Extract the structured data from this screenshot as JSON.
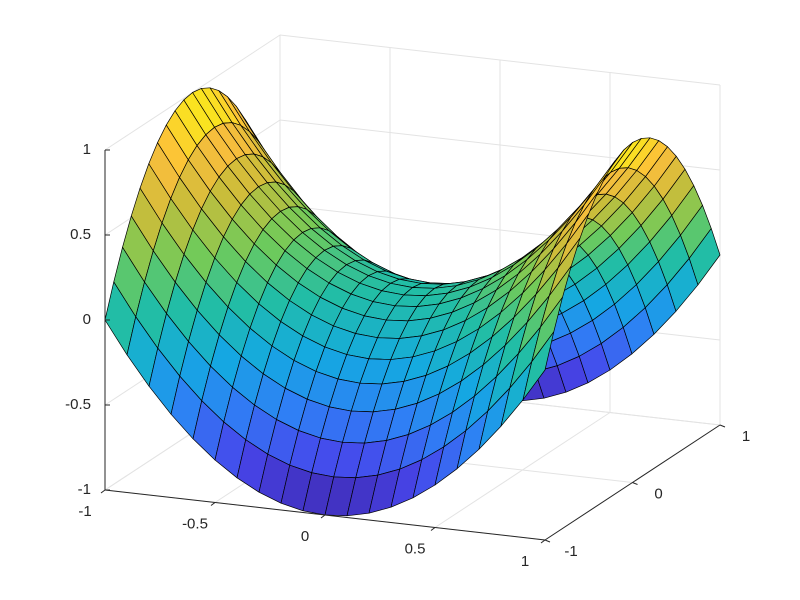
{
  "chart_data": {
    "type": "surface",
    "x": [
      -1,
      -0.9,
      -0.8,
      -0.7,
      -0.6,
      -0.5,
      -0.4,
      -0.3,
      -0.2,
      -0.1,
      0,
      0.1,
      0.2,
      0.3,
      0.4,
      0.5,
      0.6,
      0.7,
      0.8,
      0.9,
      1
    ],
    "y": [
      -1,
      -0.9,
      -0.8,
      -0.7,
      -0.6,
      -0.5,
      -0.4,
      -0.3,
      -0.2,
      -0.1,
      0,
      0.1,
      0.2,
      0.3,
      0.4,
      0.5,
      0.6,
      0.7,
      0.8,
      0.9,
      1
    ],
    "z": [
      [
        0,
        -0.19,
        -0.36,
        -0.51,
        -0.64,
        -0.75,
        -0.84,
        -0.91,
        -0.96,
        -0.99,
        -1,
        -0.99,
        -0.96,
        -0.91,
        -0.84,
        -0.75,
        -0.64,
        -0.51,
        -0.36,
        -0.19,
        0
      ],
      [
        0.19,
        0,
        -0.17,
        -0.32,
        -0.45,
        -0.56,
        -0.65,
        -0.72,
        -0.77,
        -0.8,
        -0.81,
        -0.8,
        -0.77,
        -0.72,
        -0.65,
        -0.56,
        -0.45,
        -0.32,
        -0.17,
        0,
        0.19
      ],
      [
        0.36,
        0.17,
        0,
        -0.15,
        -0.28,
        -0.39,
        -0.48,
        -0.55,
        -0.6,
        -0.63,
        -0.64,
        -0.63,
        -0.6,
        -0.55,
        -0.48,
        -0.39,
        -0.28,
        -0.15,
        0,
        0.17,
        0.36
      ],
      [
        0.51,
        0.32,
        0.15,
        0,
        -0.13,
        -0.24,
        -0.33,
        -0.4,
        -0.45,
        -0.48,
        -0.49,
        -0.48,
        -0.45,
        -0.4,
        -0.33,
        -0.24,
        -0.13,
        0,
        0.15,
        0.32,
        0.51
      ],
      [
        0.64,
        0.45,
        0.28,
        0.13,
        0,
        -0.11,
        -0.2,
        -0.27,
        -0.32,
        -0.35,
        -0.36,
        -0.35,
        -0.32,
        -0.27,
        -0.2,
        -0.11,
        0,
        0.13,
        0.28,
        0.45,
        0.64
      ],
      [
        0.75,
        0.56,
        0.39,
        0.24,
        0.11,
        0,
        -0.09,
        -0.16,
        -0.21,
        -0.24,
        -0.25,
        -0.24,
        -0.21,
        -0.16,
        -0.09,
        0,
        0.11,
        0.24,
        0.39,
        0.56,
        0.75
      ],
      [
        0.84,
        0.65,
        0.48,
        0.33,
        0.2,
        0.09,
        0,
        -0.07,
        -0.12,
        -0.15,
        -0.16,
        -0.15,
        -0.12,
        -0.07,
        0,
        0.09,
        0.2,
        0.33,
        0.48,
        0.65,
        0.84
      ],
      [
        0.91,
        0.72,
        0.55,
        0.4,
        0.27,
        0.16,
        0.07,
        0,
        -0.05,
        -0.08,
        -0.09,
        -0.08,
        -0.05,
        0,
        0.07,
        0.16,
        0.27,
        0.4,
        0.55,
        0.72,
        0.91
      ],
      [
        0.96,
        0.77,
        0.6,
        0.45,
        0.32,
        0.21,
        0.12,
        0.05,
        0,
        -0.03,
        -0.04,
        -0.03,
        0,
        0.05,
        0.12,
        0.21,
        0.32,
        0.45,
        0.6,
        0.77,
        0.96
      ],
      [
        0.99,
        0.8,
        0.63,
        0.48,
        0.35,
        0.24,
        0.15,
        0.08,
        0.03,
        0,
        -0.01,
        0,
        0.03,
        0.08,
        0.15,
        0.24,
        0.35,
        0.48,
        0.63,
        0.8,
        0.99
      ],
      [
        1,
        0.81,
        0.64,
        0.49,
        0.36,
        0.25,
        0.16,
        0.09,
        0.04,
        0.01,
        0,
        0.01,
        0.04,
        0.09,
        0.16,
        0.25,
        0.36,
        0.49,
        0.64,
        0.81,
        1
      ],
      [
        0.99,
        0.8,
        0.63,
        0.48,
        0.35,
        0.24,
        0.15,
        0.08,
        0.03,
        0,
        -0.01,
        0,
        0.03,
        0.08,
        0.15,
        0.24,
        0.35,
        0.48,
        0.63,
        0.8,
        0.99
      ],
      [
        0.96,
        0.77,
        0.6,
        0.45,
        0.32,
        0.21,
        0.12,
        0.05,
        0,
        -0.03,
        -0.04,
        -0.03,
        0,
        0.05,
        0.12,
        0.21,
        0.32,
        0.45,
        0.6,
        0.77,
        0.96
      ],
      [
        0.91,
        0.72,
        0.55,
        0.4,
        0.27,
        0.16,
        0.07,
        0,
        -0.05,
        -0.08,
        -0.09,
        -0.08,
        -0.05,
        0,
        0.07,
        0.16,
        0.27,
        0.4,
        0.55,
        0.72,
        0.91
      ],
      [
        0.84,
        0.65,
        0.48,
        0.33,
        0.2,
        0.09,
        0,
        -0.07,
        -0.12,
        -0.15,
        -0.16,
        -0.15,
        -0.12,
        -0.07,
        0,
        0.09,
        0.2,
        0.33,
        0.48,
        0.65,
        0.84
      ],
      [
        0.75,
        0.56,
        0.39,
        0.24,
        0.11,
        0,
        -0.09,
        -0.16,
        -0.21,
        -0.24,
        -0.25,
        -0.24,
        -0.21,
        -0.16,
        -0.09,
        0,
        0.11,
        0.24,
        0.39,
        0.56,
        0.75
      ],
      [
        0.64,
        0.45,
        0.28,
        0.13,
        0,
        -0.11,
        -0.2,
        -0.27,
        -0.32,
        -0.35,
        -0.36,
        -0.35,
        -0.32,
        -0.27,
        -0.2,
        -0.11,
        0,
        0.13,
        0.28,
        0.45,
        0.64
      ],
      [
        0.51,
        0.32,
        0.15,
        0,
        -0.13,
        -0.24,
        -0.33,
        -0.4,
        -0.45,
        -0.48,
        -0.49,
        -0.48,
        -0.45,
        -0.4,
        -0.33,
        -0.24,
        -0.13,
        0,
        0.15,
        0.32,
        0.51
      ],
      [
        0.36,
        0.17,
        0,
        -0.15,
        -0.28,
        -0.39,
        -0.48,
        -0.55,
        -0.6,
        -0.63,
        -0.64,
        -0.63,
        -0.6,
        -0.55,
        -0.48,
        -0.39,
        -0.28,
        -0.15,
        0,
        0.17,
        0.36
      ],
      [
        0.19,
        0,
        -0.17,
        -0.32,
        -0.45,
        -0.56,
        -0.65,
        -0.72,
        -0.77,
        -0.8,
        -0.81,
        -0.8,
        -0.77,
        -0.72,
        -0.65,
        -0.56,
        -0.45,
        -0.32,
        -0.17,
        0,
        0.19
      ],
      [
        0,
        -0.19,
        -0.36,
        -0.51,
        -0.64,
        -0.75,
        -0.84,
        -0.91,
        -0.96,
        -0.99,
        -1,
        -0.99,
        -0.96,
        -0.91,
        -0.84,
        -0.75,
        -0.64,
        -0.51,
        -0.36,
        -0.19,
        0
      ]
    ],
    "xlim": [
      -1,
      1
    ],
    "ylim": [
      -1,
      1
    ],
    "zlim": [
      -1,
      1
    ],
    "xticks": [
      -1,
      -0.5,
      0,
      0.5,
      1
    ],
    "yticks": [
      -1,
      0,
      1
    ],
    "zticks": [
      -1,
      -0.5,
      0,
      0.5,
      1
    ],
    "grid": true,
    "colormap": [
      "#3e26a8",
      "#4746eb",
      "#2f7ff5",
      "#14a9e1",
      "#22bda6",
      "#6fcb5a",
      "#c9bd3a",
      "#fcbe3c",
      "#f9fb0e"
    ]
  }
}
